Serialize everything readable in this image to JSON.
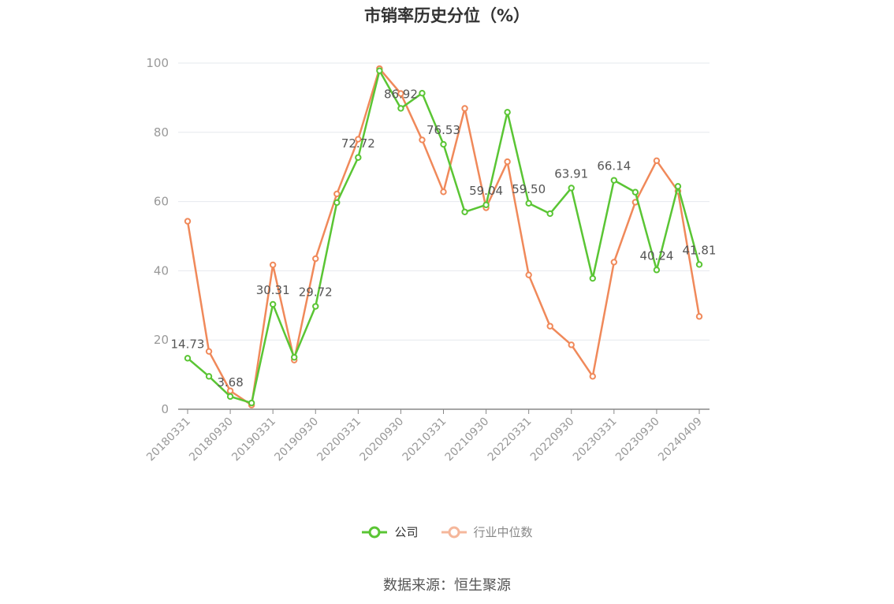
{
  "chart_data": {
    "type": "line",
    "title": "市销率历史分位（%）",
    "xlabel": "",
    "ylabel": "",
    "ylim": [
      0,
      100
    ],
    "yticks": [
      0,
      20,
      40,
      60,
      80,
      100
    ],
    "grid": true,
    "legend_position": "bottom",
    "x": [
      "20180331",
      "20180630",
      "20180930",
      "20181231",
      "20190331",
      "20190630",
      "20190930",
      "20191231",
      "20200331",
      "20200630",
      "20200930",
      "20201231",
      "20210331",
      "20210630",
      "20210930",
      "20211231",
      "20220331",
      "20220630",
      "20220930",
      "20221231",
      "20230331",
      "20230630",
      "20230930",
      "20231231",
      "20240409"
    ],
    "x_tick_labels": [
      "20180331",
      "20180930",
      "20190331",
      "20190930",
      "20200331",
      "20200930",
      "20210331",
      "20210930",
      "20220331",
      "20220930",
      "20230331",
      "20230930",
      "20240409"
    ],
    "series": [
      {
        "name": "公司",
        "color": "#5ac534",
        "values": [
          14.73,
          9.5,
          3.68,
          1.8,
          30.31,
          15.0,
          29.72,
          59.7,
          72.72,
          97.8,
          86.92,
          91.3,
          76.53,
          57.0,
          59.04,
          85.8,
          59.5,
          56.5,
          63.91,
          37.8,
          66.14,
          62.7,
          40.24,
          64.4,
          41.81
        ],
        "labels": {
          "0": "14.73",
          "2": "3.68",
          "4": "30.31",
          "6": "29.72",
          "8": "72.72",
          "10": "86.92",
          "12": "76.53",
          "14": "59.04",
          "16": "59.50",
          "18": "63.91",
          "20": "66.14",
          "22": "40.24",
          "24": "41.81"
        }
      },
      {
        "name": "行业中位数",
        "color": "#f0895a",
        "values": [
          54.3,
          16.7,
          5.3,
          1.2,
          41.7,
          14.2,
          43.5,
          62.2,
          78.0,
          98.4,
          91.2,
          77.8,
          62.8,
          86.9,
          58.2,
          71.5,
          38.8,
          24.0,
          18.6,
          9.5,
          42.5,
          59.8,
          71.8,
          63.0,
          26.8
        ]
      }
    ]
  },
  "legend": {
    "items": [
      {
        "label": "公司",
        "color": "#5ac534"
      },
      {
        "label": "行业中位数",
        "color": "#f5b79b"
      }
    ]
  },
  "source": "数据来源：恒生聚源"
}
